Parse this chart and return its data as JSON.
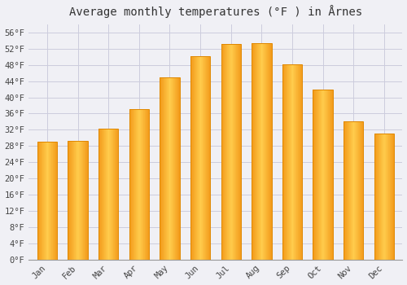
{
  "title": "Average monthly temperatures (°F ) in Årnes",
  "months": [
    "Jan",
    "Feb",
    "Mar",
    "Apr",
    "May",
    "Jun",
    "Jul",
    "Aug",
    "Sep",
    "Oct",
    "Nov",
    "Dec"
  ],
  "values": [
    29.0,
    29.3,
    32.2,
    37.0,
    45.0,
    50.2,
    53.2,
    53.4,
    48.2,
    42.0,
    34.0,
    31.0
  ],
  "bar_color_main": "#FFAA00",
  "bar_color_light": "#FFD060",
  "bar_edge_color": "#E08800",
  "background_color": "#f0f0f5",
  "plot_bg_color": "#f0f0f5",
  "grid_color": "#ccccdd",
  "ylim": [
    0,
    58
  ],
  "yticks": [
    0,
    4,
    8,
    12,
    16,
    20,
    24,
    28,
    32,
    36,
    40,
    44,
    48,
    52,
    56
  ],
  "title_fontsize": 10,
  "tick_fontsize": 7.5,
  "title_color": "#333333",
  "tick_color": "#444444",
  "bar_width": 0.65
}
